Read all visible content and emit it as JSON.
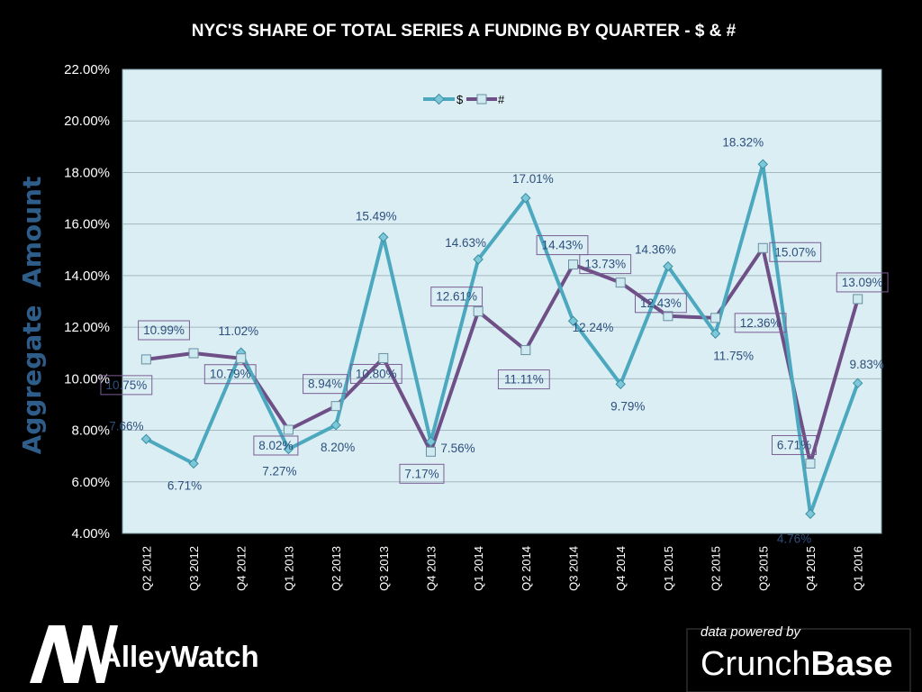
{
  "chart_data": {
    "type": "line",
    "title": "NYC'S SHARE OF TOTAL SERIES A FUNDING BY QUARTER - $ & #",
    "ylabel": "Aggregate  Amount",
    "xlabel": "",
    "ylim": [
      4,
      22
    ],
    "ytick_values": [
      4,
      6,
      8,
      10,
      12,
      14,
      16,
      18,
      20,
      22
    ],
    "yticks": [
      "4.00%",
      "6.00%",
      "8.00%",
      "10.00%",
      "12.00%",
      "14.00%",
      "16.00%",
      "18.00%",
      "20.00%",
      "22.00%"
    ],
    "categories": [
      "Q2 2012",
      "Q3 2012",
      "Q4 2012",
      "Q1 2013",
      "Q2 2013",
      "Q3 2013",
      "Q4 2013",
      "Q1 2014",
      "Q2 2014",
      "Q3 2014",
      "Q4 2014",
      "Q1 2015",
      "Q2 2015",
      "Q3 2015",
      "Q4 2015",
      "Q1 2016"
    ],
    "series": [
      {
        "name": "$",
        "color": "#4ba8bf",
        "marker": "diamond",
        "values": [
          7.66,
          6.71,
          11.02,
          7.27,
          8.2,
          15.49,
          7.56,
          14.63,
          17.01,
          12.24,
          9.79,
          14.36,
          11.75,
          18.32,
          4.76,
          9.83
        ],
        "labels": [
          "7.66%",
          "6.71%",
          "11.02%",
          "7.27%",
          "8.20%",
          "15.49%",
          "7.56%",
          "14.63%",
          "17.01%",
          "12.24%",
          "9.79%",
          "14.36%",
          "11.75%",
          "18.32%",
          "4.76%",
          "9.83%"
        ]
      },
      {
        "name": "#",
        "color": "#6e4f86",
        "marker": "square",
        "values": [
          10.75,
          10.99,
          10.79,
          8.02,
          8.94,
          10.8,
          7.17,
          12.61,
          11.11,
          14.43,
          13.73,
          12.43,
          12.36,
          15.07,
          6.71,
          13.09
        ],
        "labels": [
          "10.75%",
          "10.99%",
          "10.79%",
          "8.02%",
          "8.94%",
          "10.80%",
          "7.17%",
          "12.61%",
          "11.11%",
          "14.43%",
          "13.73%",
          "12.43%",
          "12.36%",
          "15.07%",
          "6.71%",
          "13.09%"
        ]
      }
    ],
    "legend": "top-center",
    "grid": true
  },
  "branding": {
    "logo_mark": "AW",
    "logo_name": "AlleyWatch",
    "powered_by": "data powered by",
    "provider_light": "Crunch",
    "provider_bold": "Base"
  }
}
